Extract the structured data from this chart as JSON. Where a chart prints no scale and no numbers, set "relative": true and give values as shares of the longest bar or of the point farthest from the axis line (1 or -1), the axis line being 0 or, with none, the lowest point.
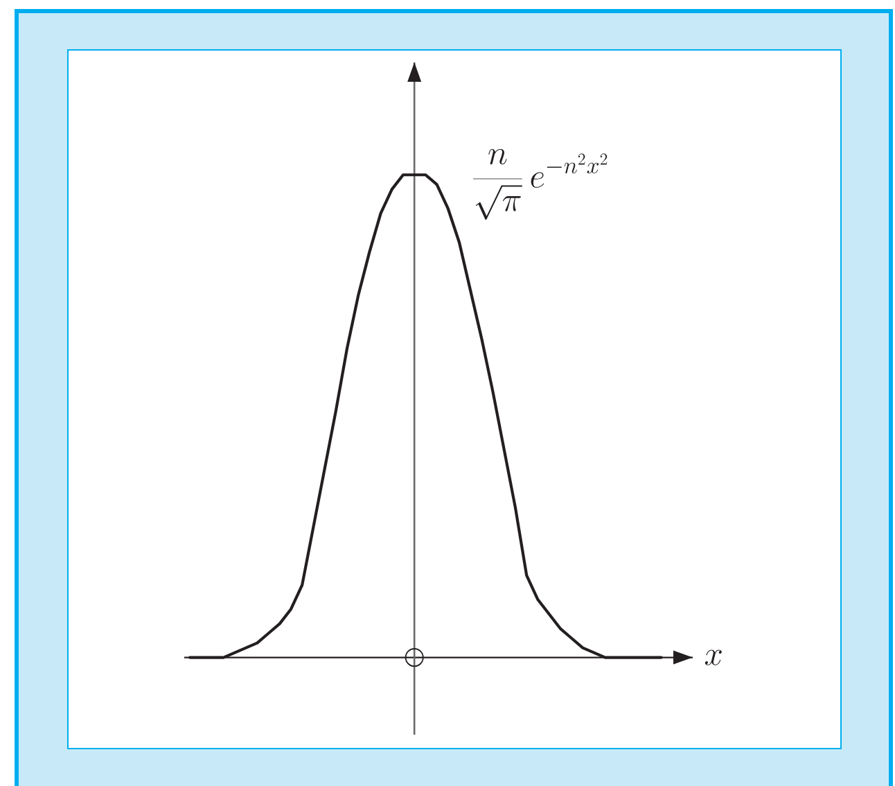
{
  "chart_data": {
    "type": "line",
    "relative": true,
    "xlabel": "x",
    "marker": "none",
    "line_style": "solid",
    "categories": [
      null,
      null,
      null,
      null,
      null,
      null,
      null,
      null,
      null,
      null,
      null,
      null,
      null,
      null,
      null,
      null,
      null,
      null,
      null,
      null,
      null,
      null,
      null,
      null,
      null,
      null,
      null,
      null,
      null,
      null,
      null,
      null,
      null,
      null,
      null,
      null,
      null,
      null,
      null,
      null,
      null,
      null,
      null,
      null,
      null
    ],
    "series": [
      {
        "name": "\\frac{n}{\\sqrt{\\pi}}\\, e^{-n^2x^2}",
        "color": "#231f20",
        "values": [
          null,
          null,
          0,
          0,
          0,
          0,
          0.01,
          0.02,
          0.03,
          0.05,
          0.07,
          0.1,
          0.15,
          0.27,
          0.39,
          0.51,
          0.64,
          0.75,
          0.84,
          0.92,
          0.97,
          1,
          1,
          1,
          0.98,
          0.93,
          0.86,
          0.76,
          0.66,
          0.55,
          0.43,
          0.31,
          0.17,
          0.12,
          0.09,
          0.06,
          0.04,
          0.02,
          0.01,
          0,
          0,
          0,
          0,
          0,
          0
        ]
      }
    ]
  }
}
